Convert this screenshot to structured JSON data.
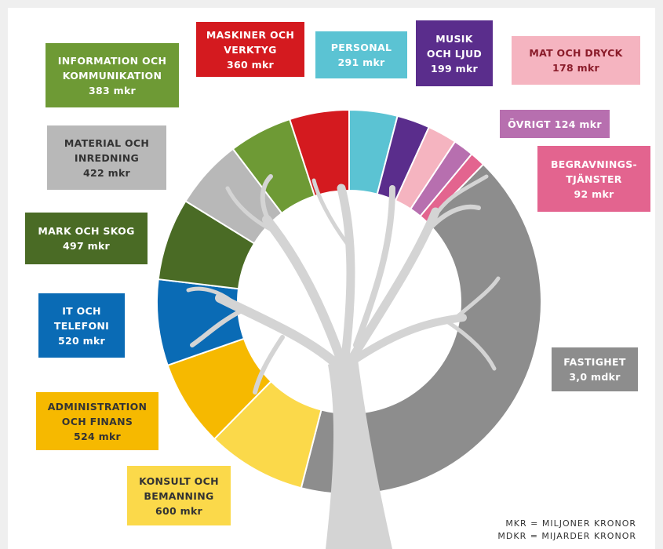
{
  "chart_data": {
    "type": "donut",
    "categories": [
      "PERSONAL",
      "MUSIK OCH LJUD",
      "MAT OCH DRYCK",
      "ÖVRIGT",
      "BEGRAVNINGS-TJÄNSTER",
      "FASTIGHET",
      "KONSULT OCH BEMANNING",
      "ADMINISTRATION OCH FINANS",
      "IT OCH TELEFONI",
      "MARK OCH SKOG",
      "MATERIAL OCH INREDNING",
      "INFORMATION OCH KOMMUNIKATION",
      "MASKINER OCH VERKTYG"
    ],
    "values": [
      291,
      199,
      178,
      124,
      92,
      3000,
      600,
      524,
      520,
      497,
      422,
      383,
      360
    ],
    "value_labels": [
      "291 mkr",
      "199 mkr",
      "178 mkr",
      "124 mkr",
      "92 mkr",
      "3,0 mdkr",
      "600 mkr",
      "524 mkr",
      "520 mkr",
      "497 mkr",
      "422 mkr",
      "383 mkr",
      "360 mkr"
    ],
    "colors": [
      "#5bc3d3",
      "#5a2d8c",
      "#f5b4c0",
      "#b76faf",
      "#e3648f",
      "#8d8d8d",
      "#fbd94a",
      "#f6b900",
      "#0a6bb5",
      "#4a6b25",
      "#b8b8b8",
      "#6e9a35",
      "#d41a1f"
    ],
    "notes": [
      "MKR = MILJONER KRONOR",
      "MDKR = MIJARDER KRONOR"
    ]
  }
}
